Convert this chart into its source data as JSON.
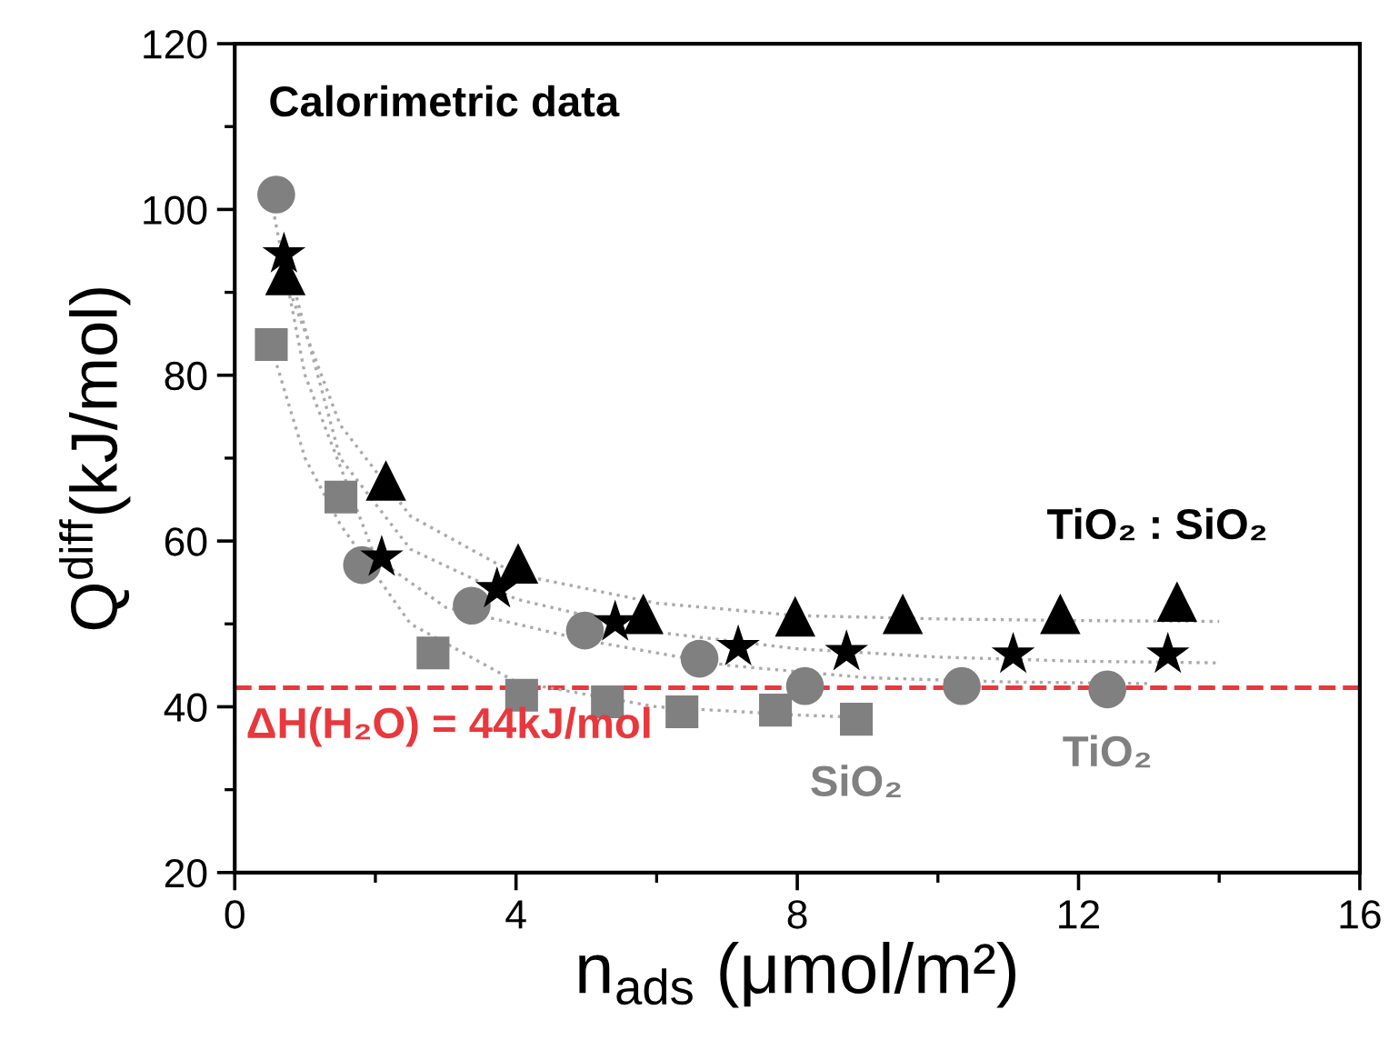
{
  "chart_data": {
    "type": "scatter",
    "xlabel": "n$_{ads}$ (μmol/m²)",
    "ylabel": "Q$^{diff}$(kJ/mol)",
    "xlim": [
      0,
      16
    ],
    "xticks": [
      0,
      4,
      8,
      12,
      16
    ],
    "ylim": [
      20,
      120
    ],
    "yticks": [
      20,
      40,
      60,
      80,
      100,
      120
    ],
    "grid": false,
    "legend": false,
    "annotations": [
      "Calorimetric data",
      "TiO₂ : SiO₂",
      "ΔH(H₂O) = 44kJ/mol"
    ],
    "ref_lines": [
      {
        "axis": "y",
        "value": 42.3,
        "color": "#e8383d",
        "line_style": "dashed"
      }
    ],
    "series": [
      {
        "type": "line",
        "color": "#aaaaaa",
        "marker": "none",
        "line_style": "dotted",
        "x": [
          0.5,
          1,
          1.5,
          2.5,
          4,
          6,
          8,
          9
        ],
        "values": [
          84,
          70,
          62,
          50,
          43,
          40,
          39,
          38.7
        ]
      },
      {
        "type": "line",
        "color": "#aaaaaa",
        "marker": "none",
        "line_style": "dotted",
        "x": [
          0.5,
          1,
          2,
          3,
          5,
          7,
          9,
          11,
          13
        ],
        "values": [
          102,
          80,
          58,
          52,
          48,
          45,
          43.5,
          43,
          42.8
        ]
      },
      {
        "type": "line",
        "color": "#aaaaaa",
        "marker": "none",
        "line_style": "dotted",
        "x": [
          0.7,
          1.5,
          2.5,
          4,
          6,
          8,
          10,
          12,
          14
        ],
        "values": [
          95,
          70,
          59,
          53,
          49,
          47,
          46,
          45.5,
          45.3
        ]
      },
      {
        "type": "line",
        "color": "#aaaaaa",
        "marker": "none",
        "line_style": "dotted",
        "x": [
          0.7,
          1.5,
          2.5,
          4,
          6,
          8,
          10,
          12,
          14
        ],
        "values": [
          92,
          74,
          63,
          56,
          52.5,
          51,
          50.6,
          50.4,
          50.3
        ]
      },
      {
        "name": "SiO₂",
        "color": "#808080",
        "marker": "square",
        "x": [
          0.52,
          1.51,
          2.82,
          4.08,
          5.3,
          6.36,
          7.69,
          8.84
        ],
        "values": [
          83.7,
          65.3,
          46.5,
          41.4,
          40.6,
          39.4,
          39.6,
          38.5
        ]
      },
      {
        "name": "TiO₂",
        "color": "#808080",
        "marker": "circle",
        "x": [
          0.59,
          1.81,
          3.37,
          4.98,
          6.61,
          8.11,
          10.34,
          12.41
        ],
        "values": [
          101.8,
          57.1,
          52.2,
          49.2,
          45.8,
          42.5,
          42.5,
          42.1
        ]
      },
      {
        "color": "#000000",
        "marker": "star",
        "x": [
          0.7,
          2.09,
          3.73,
          5.41,
          7.16,
          8.7,
          11.07,
          13.27
        ],
        "values": [
          94.6,
          58.0,
          54.2,
          50.2,
          47.2,
          46.6,
          46.3,
          46.3
        ]
      },
      {
        "color": "#000000",
        "marker": "triangle",
        "x": [
          0.72,
          2.15,
          4.03,
          5.81,
          7.97,
          9.5,
          11.74,
          13.4
        ],
        "values": [
          92.1,
          67.3,
          57.3,
          51.2,
          50.9,
          51.2,
          51.2,
          52.7
        ]
      }
    ]
  }
}
